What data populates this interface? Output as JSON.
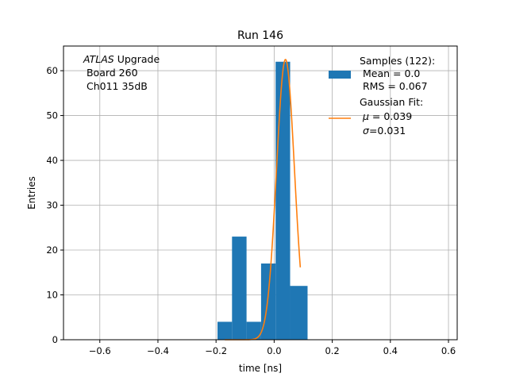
{
  "chart_data": {
    "type": "bar",
    "title": "Run 146",
    "xlabel": "time [ns]",
    "ylabel": "Entries",
    "xlim": [
      -0.725,
      0.63
    ],
    "ylim": [
      0,
      65.5
    ],
    "xticks": [
      -0.6,
      -0.4,
      -0.2,
      0.0,
      0.2,
      0.4,
      0.6
    ],
    "xtick_labels": [
      "−0.6",
      "−0.4",
      "−0.2",
      "0.0",
      "0.2",
      "0.4",
      "0.6"
    ],
    "yticks": [
      0,
      10,
      20,
      30,
      40,
      50,
      60
    ],
    "ytick_labels": [
      "0",
      "10",
      "20",
      "30",
      "40",
      "50",
      "60"
    ],
    "grid": true,
    "legend_position": "top-right",
    "bin_edges": [
      -0.195,
      -0.145,
      -0.095,
      -0.045,
      0.005,
      0.055,
      0.115
    ],
    "bin_values": [
      4,
      23,
      4,
      17,
      62,
      12
    ],
    "hist_color": "#1f77b4",
    "fit": {
      "mu": 0.039,
      "sigma": 0.031,
      "amplitude": 62.5,
      "x_start": -0.17,
      "x_end": 0.09,
      "color": "#ff7f0e"
    },
    "annotation": {
      "line1_italic": "ATLAS",
      "line1_rest": " Upgrade",
      "line2": " Board 260",
      "line3": " Ch011 35dB"
    },
    "legend": {
      "samples": {
        "label": "Samples (122):",
        "mean": " Mean = 0.0",
        "rms": " RMS = 0.067"
      },
      "fit": {
        "label": "Gaussian Fit:",
        "mu_symbol": "μ",
        "mu_value": " = 0.039",
        "sigma_symbol": "σ",
        "sigma_value": "=0.031"
      }
    }
  }
}
